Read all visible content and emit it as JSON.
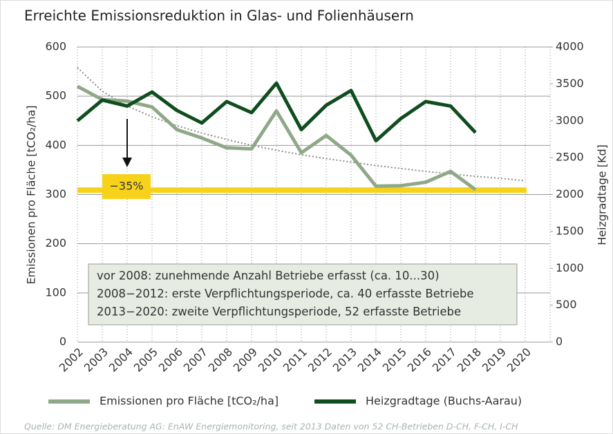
{
  "chart_data": {
    "type": "line",
    "title": "Erreichte Emissionsreduktion in Glas- und Folienhäusern",
    "source": "Quelle: DM Energieberatung AG: EnAW Energiemonitoring, seit 2013 Daten von 52 CH-Betrieben D-CH, F-CH, I-CH",
    "ylabel": "Emissionen pro Fläche [tCO₂/ha]",
    "y2label": "Heizgradtage [Kd]",
    "categories": [
      "2002",
      "2003",
      "2004",
      "2005",
      "2006",
      "2007",
      "2008",
      "2009",
      "2010",
      "2011",
      "2012",
      "2013",
      "2014",
      "2015",
      "2016",
      "2017",
      "2018",
      "2019",
      "2020"
    ],
    "series": [
      {
        "name": "Emissionen pro Fläche [tCO₂/ha]",
        "color": "#8fa888",
        "values": [
          520,
          493,
          490,
          478,
          432,
          415,
          395,
          393,
          470,
          385,
          420,
          380,
          317,
          318,
          325,
          347,
          310,
          null,
          null
        ]
      },
      {
        "name": "Heizgradtage (Buchs-Aarau)",
        "color": "#0f4d1f",
        "axis": "y2",
        "values": [
          3000,
          3280,
          3200,
          3390,
          3140,
          2970,
          3260,
          3110,
          3510,
          2880,
          3210,
          3410,
          2730,
          3030,
          3260,
          3200,
          2840,
          null,
          null
        ]
      }
    ],
    "trend": {
      "color": "#8a8a8a",
      "values": [
        558,
        510,
        480,
        458,
        440,
        425,
        412,
        400,
        390,
        381,
        373,
        366,
        359,
        353,
        347,
        342,
        337,
        333,
        328
      ]
    },
    "reference_line": {
      "value": 309,
      "color": "#f7d21a",
      "label": "−35%"
    },
    "annotation_lines": [
      "vor 2008: zunehmende Anzahl Betriebe erfasst (ca. 10...30)",
      "2008−2012: erste Verpflichtungsperiode, ca. 40 erfasste Betriebe",
      "2013−2020: zweite Verpflichtungsperiode, 52 erfasste Betriebe"
    ],
    "ylim": [
      0,
      600
    ],
    "yticks": [
      0,
      100,
      200,
      300,
      400,
      500,
      600
    ],
    "y2lim": [
      0,
      4000
    ],
    "y2ticks": [
      0,
      500,
      1000,
      1500,
      2000,
      2500,
      3000,
      3500,
      4000
    ],
    "grid": true
  }
}
